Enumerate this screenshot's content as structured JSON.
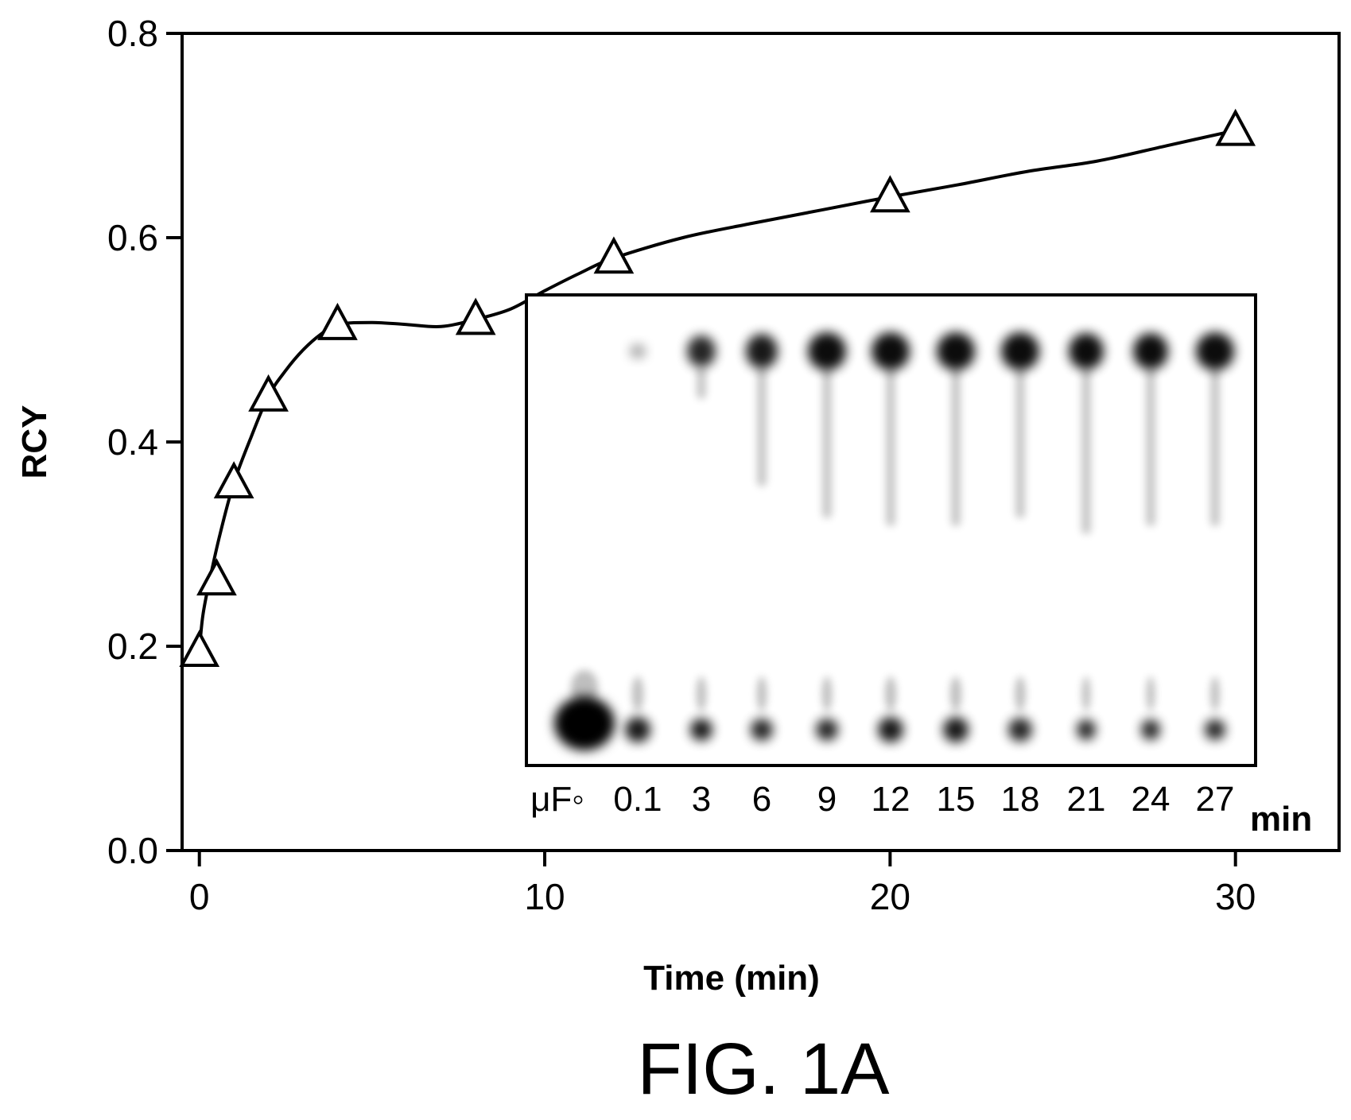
{
  "chart_data": {
    "type": "line",
    "xlabel": "Time (min)",
    "ylabel": "RCY",
    "xlim": [
      -0.5,
      33
    ],
    "ylim": [
      0.0,
      0.8
    ],
    "xticks": [
      "0",
      "10",
      "20",
      "30"
    ],
    "xtick_values": [
      0,
      10,
      20,
      30
    ],
    "yticks": [
      "0.0",
      "0.2",
      "0.4",
      "0.6",
      "0.8"
    ],
    "ytick_values": [
      0.0,
      0.2,
      0.4,
      0.6,
      0.8
    ],
    "grid": false,
    "series": [
      {
        "marker": "open-triangle",
        "x": [
          0,
          0.5,
          1,
          2,
          4,
          8,
          12,
          20,
          30
        ],
        "y": [
          0.195,
          0.265,
          0.36,
          0.445,
          0.515,
          0.52,
          0.58,
          0.64,
          0.705
        ]
      }
    ],
    "curve": {
      "x": [
        0,
        0.1,
        0.3,
        0.6,
        1,
        1.5,
        2,
        2.5,
        3,
        3.5,
        4,
        5,
        6,
        7,
        8,
        9,
        10,
        11,
        12,
        14,
        16,
        18,
        20,
        22,
        24,
        26,
        28,
        30
      ],
      "y": [
        0.195,
        0.23,
        0.265,
        0.31,
        0.36,
        0.405,
        0.445,
        0.47,
        0.49,
        0.505,
        0.515,
        0.517,
        0.515,
        0.513,
        0.52,
        0.53,
        0.548,
        0.565,
        0.58,
        0.6,
        0.614,
        0.627,
        0.64,
        0.652,
        0.665,
        0.675,
        0.69,
        0.705
      ]
    }
  },
  "inset": {
    "lane_labels": [
      "μF◦",
      "0.1",
      "3",
      "6",
      "9",
      "12",
      "15",
      "18",
      "21",
      "24",
      "27"
    ],
    "unit": "min"
  },
  "caption": "FIG. 1A"
}
